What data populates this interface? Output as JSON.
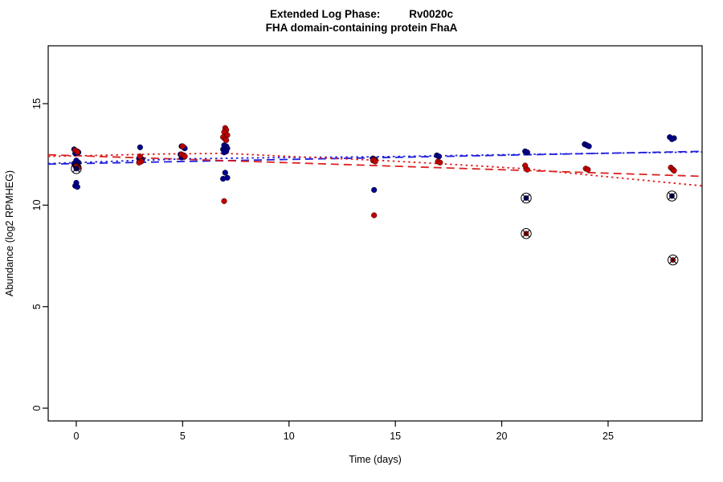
{
  "title": {
    "phase": "Extended Log Phase:",
    "gene": "Rv0020c",
    "subtitle": "FHA domain-containing protein FhaA"
  },
  "chart_data": {
    "type": "scatter",
    "title": "Extended Log Phase:  Rv0020c",
    "subtitle": "FHA domain-containing protein FhaA",
    "xlabel": "Time  (days)",
    "ylabel": "Abundance  (log2 RPMHEG)",
    "xlim": [
      -1.32,
      29.42
    ],
    "ylim": [
      -0.63,
      17.85
    ],
    "x_ticks": [
      0,
      5,
      10,
      15,
      20,
      25
    ],
    "y_ticks": [
      0,
      5,
      10,
      15
    ],
    "grid": false,
    "legend": false,
    "series": [
      {
        "name": "blue",
        "color": "#00008B",
        "points": [
          [
            -0.1,
            12.75
          ],
          [
            0.05,
            12.65
          ],
          [
            0.1,
            12.6
          ],
          [
            -0.05,
            12.55
          ],
          [
            0.0,
            12.2
          ],
          [
            0.1,
            12.1
          ],
          [
            -0.1,
            12.05
          ],
          [
            0.05,
            12.0
          ],
          [
            -0.05,
            11.95
          ],
          [
            0.1,
            11.9
          ],
          [
            0.0,
            11.85
          ],
          [
            0.0,
            11.1
          ],
          [
            -0.05,
            10.95
          ],
          [
            0.05,
            10.9
          ],
          [
            3.0,
            12.85
          ],
          [
            2.95,
            12.3
          ],
          [
            3.1,
            12.25
          ],
          [
            4.95,
            12.9
          ],
          [
            5.05,
            12.85
          ],
          [
            5.1,
            12.8
          ],
          [
            4.9,
            12.5
          ],
          [
            5.0,
            12.45
          ],
          [
            5.1,
            12.4
          ],
          [
            4.95,
            12.35
          ],
          [
            6.95,
            12.95
          ],
          [
            7.05,
            12.9
          ],
          [
            7.1,
            12.8
          ],
          [
            6.9,
            12.75
          ],
          [
            7.0,
            12.7
          ],
          [
            7.05,
            12.65
          ],
          [
            6.95,
            12.6
          ],
          [
            7.0,
            11.6
          ],
          [
            7.1,
            11.35
          ],
          [
            6.9,
            11.3
          ],
          [
            13.95,
            12.3
          ],
          [
            14.05,
            12.25
          ],
          [
            14.0,
            12.2
          ],
          [
            14.0,
            10.75
          ],
          [
            16.95,
            12.45
          ],
          [
            17.05,
            12.4
          ],
          [
            21.1,
            12.65
          ],
          [
            21.2,
            12.6
          ],
          [
            23.9,
            13.0
          ],
          [
            24.0,
            12.95
          ],
          [
            24.1,
            12.9
          ],
          [
            27.9,
            13.35
          ],
          [
            28.1,
            13.3
          ],
          [
            28.0,
            13.25
          ]
        ]
      },
      {
        "name": "red",
        "color": "#C00000",
        "points": [
          [
            -0.05,
            12.7
          ],
          [
            0.05,
            12.62
          ],
          [
            0.0,
            11.92
          ],
          [
            0.1,
            11.85
          ],
          [
            3.0,
            12.4
          ],
          [
            3.05,
            12.15
          ],
          [
            2.95,
            12.1
          ],
          [
            5.0,
            12.9
          ],
          [
            4.95,
            12.5
          ],
          [
            5.05,
            12.45
          ],
          [
            5.1,
            12.4
          ],
          [
            7.0,
            13.8
          ],
          [
            7.05,
            13.7
          ],
          [
            6.95,
            13.6
          ],
          [
            7.1,
            13.45
          ],
          [
            6.9,
            13.35
          ],
          [
            7.0,
            13.25
          ],
          [
            7.05,
            13.2
          ],
          [
            6.95,
            10.2
          ],
          [
            14.0,
            12.25
          ],
          [
            13.95,
            12.2
          ],
          [
            14.05,
            12.15
          ],
          [
            14.0,
            9.5
          ],
          [
            17.0,
            12.15
          ],
          [
            17.1,
            12.1
          ],
          [
            21.1,
            11.95
          ],
          [
            21.2,
            11.75
          ],
          [
            23.95,
            11.8
          ],
          [
            24.05,
            11.75
          ],
          [
            27.95,
            11.85
          ],
          [
            28.05,
            11.75
          ],
          [
            28.1,
            11.7
          ]
        ]
      }
    ],
    "outliers": [
      {
        "x": 0.0,
        "y": 11.8,
        "color": "#00008B"
      },
      {
        "x": 21.15,
        "y": 10.35,
        "color": "#00008B"
      },
      {
        "x": 21.15,
        "y": 8.6,
        "color": "#C00000"
      },
      {
        "x": 28.0,
        "y": 10.45,
        "color": "#00008B"
      },
      {
        "x": 28.05,
        "y": 7.3,
        "color": "#C00000"
      }
    ],
    "trend_lines": [
      {
        "name": "blue-dashed",
        "color": "#2020DD",
        "dash": "10 6",
        "points": [
          [
            -1.32,
            12.02
          ],
          [
            29.42,
            12.65
          ]
        ]
      },
      {
        "name": "red-dashed",
        "color": "#DD2020",
        "dash": "10 6",
        "points": [
          [
            -1.32,
            12.48
          ],
          [
            29.42,
            11.42
          ]
        ]
      },
      {
        "name": "blue-dotted",
        "color": "#2020DD",
        "dash": "2.5 4",
        "points": [
          [
            -1.32,
            12.05
          ],
          [
            5,
            12.28
          ],
          [
            10,
            12.35
          ],
          [
            14,
            12.38
          ],
          [
            21,
            12.5
          ],
          [
            29.42,
            12.62
          ]
        ]
      },
      {
        "name": "red-dotted",
        "color": "#DD2020",
        "dash": "2.5 4",
        "points": [
          [
            -1.32,
            12.4
          ],
          [
            4,
            12.52
          ],
          [
            7,
            12.55
          ],
          [
            10,
            12.4
          ],
          [
            14,
            12.22
          ],
          [
            17,
            12.05
          ],
          [
            21,
            11.8
          ],
          [
            29.42,
            10.95
          ]
        ]
      }
    ]
  }
}
